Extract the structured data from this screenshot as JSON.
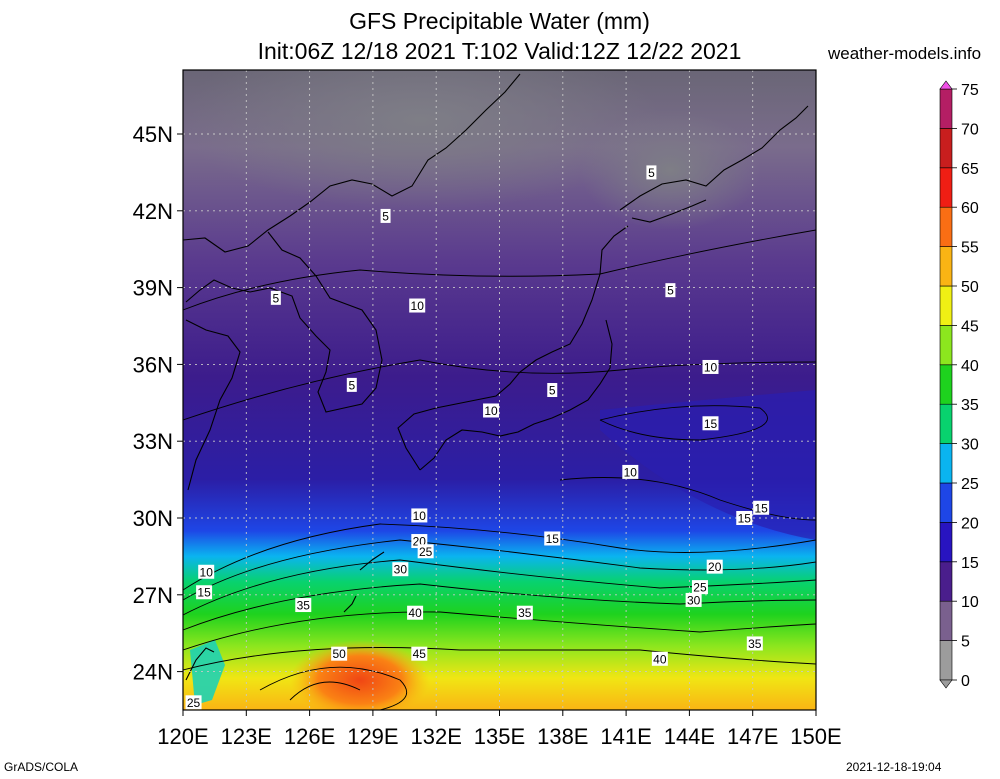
{
  "title_line1": "GFS Precipitable Water (mm)",
  "title_line2": "Init:06Z 12/18 2021 T:102 Valid:12Z 12/22 2021",
  "site": "weather-models.info",
  "footer_left": "GrADS/COLA",
  "footer_right": "2021-12-18-19:04",
  "map": {
    "lon_range": [
      120,
      150
    ],
    "lat_range": [
      22.5,
      47.5
    ],
    "lat_ticks": [
      {
        "value": 45,
        "label": "45N"
      },
      {
        "value": 42,
        "label": "42N"
      },
      {
        "value": 39,
        "label": "39N"
      },
      {
        "value": 36,
        "label": "36N"
      },
      {
        "value": 33,
        "label": "33N"
      },
      {
        "value": 30,
        "label": "30N"
      },
      {
        "value": 27,
        "label": "27N"
      },
      {
        "value": 24,
        "label": "24N"
      }
    ],
    "lon_ticks": [
      {
        "value": 120,
        "label": "120E"
      },
      {
        "value": 123,
        "label": "123E"
      },
      {
        "value": 126,
        "label": "126E"
      },
      {
        "value": 129,
        "label": "129E"
      },
      {
        "value": 132,
        "label": "132E"
      },
      {
        "value": 135,
        "label": "135E"
      },
      {
        "value": 138,
        "label": "138E"
      },
      {
        "value": 141,
        "label": "141E"
      },
      {
        "value": 144,
        "label": "144E"
      },
      {
        "value": 147,
        "label": "147E"
      },
      {
        "value": 150,
        "label": "150E"
      }
    ],
    "contour_labels": [
      {
        "text": "5",
        "lon": 142.2,
        "lat": 43.5
      },
      {
        "text": "5",
        "lon": 129.6,
        "lat": 41.8
      },
      {
        "text": "5",
        "lon": 124.4,
        "lat": 38.6
      },
      {
        "text": "10",
        "lon": 131.1,
        "lat": 38.3
      },
      {
        "text": "5",
        "lon": 143.1,
        "lat": 38.9
      },
      {
        "text": "5",
        "lon": 128.0,
        "lat": 35.2
      },
      {
        "text": "10",
        "lon": 134.6,
        "lat": 34.2
      },
      {
        "text": "5",
        "lon": 137.5,
        "lat": 35.0
      },
      {
        "text": "10",
        "lon": 145.0,
        "lat": 35.9
      },
      {
        "text": "15",
        "lon": 145.0,
        "lat": 33.7
      },
      {
        "text": "10",
        "lon": 141.2,
        "lat": 31.8
      },
      {
        "text": "15",
        "lon": 147.4,
        "lat": 30.4
      },
      {
        "text": "15",
        "lon": 146.6,
        "lat": 30.0
      },
      {
        "text": "10",
        "lon": 131.2,
        "lat": 30.1
      },
      {
        "text": "15",
        "lon": 137.5,
        "lat": 29.2
      },
      {
        "text": "20",
        "lon": 131.2,
        "lat": 29.1
      },
      {
        "text": "25",
        "lon": 131.5,
        "lat": 28.7
      },
      {
        "text": "20",
        "lon": 145.2,
        "lat": 28.1
      },
      {
        "text": "10",
        "lon": 121.1,
        "lat": 27.9
      },
      {
        "text": "30",
        "lon": 130.3,
        "lat": 28.0
      },
      {
        "text": "15",
        "lon": 121.0,
        "lat": 27.1
      },
      {
        "text": "25",
        "lon": 144.5,
        "lat": 27.3
      },
      {
        "text": "30",
        "lon": 144.2,
        "lat": 26.8
      },
      {
        "text": "35",
        "lon": 125.7,
        "lat": 26.6
      },
      {
        "text": "40",
        "lon": 131.0,
        "lat": 26.3
      },
      {
        "text": "35",
        "lon": 136.2,
        "lat": 26.3
      },
      {
        "text": "35",
        "lon": 147.1,
        "lat": 25.1
      },
      {
        "text": "50",
        "lon": 127.4,
        "lat": 24.7
      },
      {
        "text": "45",
        "lon": 131.2,
        "lat": 24.7
      },
      {
        "text": "40",
        "lon": 142.6,
        "lat": 24.5
      },
      {
        "text": "25",
        "lon": 120.5,
        "lat": 22.8
      }
    ]
  },
  "colorbar": {
    "levels": [
      {
        "value": 0,
        "color": "#9c9c9c",
        "label": "0"
      },
      {
        "value": 5,
        "color": "#7a608e",
        "label": "5"
      },
      {
        "value": 10,
        "color": "#4a1e8c",
        "label": "10"
      },
      {
        "value": 15,
        "color": "#2814c0",
        "label": "15"
      },
      {
        "value": 20,
        "color": "#1e46e6",
        "label": "20"
      },
      {
        "value": 25,
        "color": "#0ab4f0",
        "label": "25"
      },
      {
        "value": 30,
        "color": "#08d26e",
        "label": "30"
      },
      {
        "value": 35,
        "color": "#1ed21e",
        "label": "35"
      },
      {
        "value": 40,
        "color": "#8ce61e",
        "label": "40"
      },
      {
        "value": 45,
        "color": "#f0f014",
        "label": "45"
      },
      {
        "value": 50,
        "color": "#fab414",
        "label": "50"
      },
      {
        "value": 55,
        "color": "#fa6e14",
        "label": "55"
      },
      {
        "value": 60,
        "color": "#f01e14",
        "label": "60"
      },
      {
        "value": 65,
        "color": "#c81e1e",
        "label": "65"
      },
      {
        "value": 70,
        "color": "#b41e64",
        "label": "70"
      },
      {
        "value": 75,
        "color": "#f050e6",
        "label": "75"
      }
    ]
  }
}
